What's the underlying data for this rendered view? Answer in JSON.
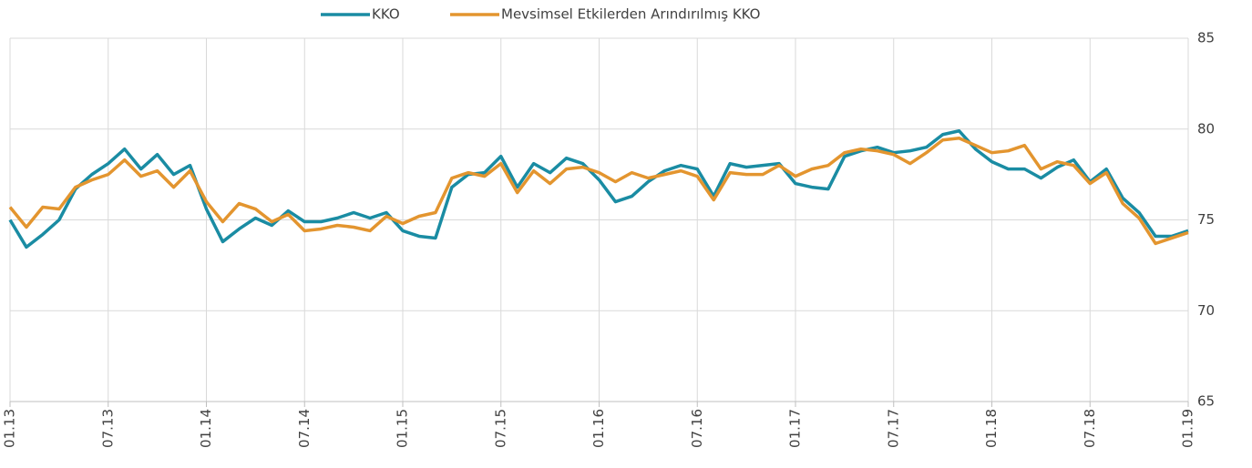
{
  "chart_data": {
    "type": "line",
    "categories": [
      "01.13",
      null,
      null,
      null,
      null,
      null,
      "07.13",
      null,
      null,
      null,
      null,
      null,
      "01.14",
      null,
      null,
      null,
      null,
      null,
      "07.14",
      null,
      null,
      null,
      null,
      null,
      "01.15",
      null,
      null,
      null,
      null,
      null,
      "07.15",
      null,
      null,
      null,
      null,
      null,
      "01.16",
      null,
      null,
      null,
      null,
      null,
      "07.16",
      null,
      null,
      null,
      null,
      null,
      "01.17",
      null,
      null,
      null,
      null,
      null,
      "07.17",
      null,
      null,
      null,
      null,
      null,
      "01.18",
      null,
      null,
      null,
      null,
      null,
      "07.18",
      null,
      null,
      null,
      null,
      null,
      "01.19"
    ],
    "series": [
      {
        "name": "KKO",
        "color": "#1a8ca3",
        "values": [
          75.0,
          73.5,
          74.2,
          75.0,
          76.7,
          77.5,
          78.1,
          78.9,
          77.8,
          78.6,
          77.5,
          78.0,
          75.6,
          73.8,
          74.5,
          75.1,
          74.7,
          75.5,
          74.9,
          74.9,
          75.1,
          75.4,
          75.1,
          75.4,
          74.4,
          74.1,
          74.0,
          76.8,
          77.5,
          77.6,
          78.5,
          76.8,
          78.1,
          77.6,
          78.4,
          78.1,
          77.2,
          76.0,
          76.3,
          77.1,
          77.7,
          78.0,
          77.8,
          76.3,
          78.1,
          77.9,
          78.0,
          78.1,
          77.0,
          76.8,
          76.7,
          78.5,
          78.8,
          79.0,
          78.7,
          78.8,
          79.0,
          79.7,
          79.9,
          78.9,
          78.2,
          77.8,
          77.8,
          77.3,
          77.9,
          78.3,
          77.1,
          77.8,
          76.2,
          75.4,
          74.1,
          74.1,
          74.4
        ]
      },
      {
        "name": "Mevsimsel Etkilerden Arındırılmış KKO",
        "color": "#e3952f",
        "values": [
          75.7,
          74.6,
          75.7,
          75.6,
          76.8,
          77.2,
          77.5,
          78.3,
          77.4,
          77.7,
          76.8,
          77.7,
          76.0,
          74.9,
          75.9,
          75.6,
          74.9,
          75.3,
          74.4,
          74.5,
          74.7,
          74.6,
          74.4,
          75.2,
          74.8,
          75.2,
          75.4,
          77.3,
          77.6,
          77.4,
          78.1,
          76.5,
          77.7,
          77.0,
          77.8,
          77.9,
          77.6,
          77.1,
          77.6,
          77.3,
          77.5,
          77.7,
          77.4,
          76.1,
          77.6,
          77.5,
          77.5,
          78.0,
          77.4,
          77.8,
          78.0,
          78.7,
          78.9,
          78.8,
          78.6,
          78.1,
          78.7,
          79.4,
          79.5,
          79.1,
          78.7,
          78.8,
          79.1,
          77.8,
          78.2,
          78.0,
          77.0,
          77.6,
          75.9,
          75.1,
          73.7,
          74.0,
          74.3
        ]
      }
    ],
    "ylim": [
      65,
      85
    ],
    "yticks": [
      65,
      70,
      75,
      80,
      85
    ],
    "grid": true,
    "y_axis_side": "right",
    "legend": "top"
  }
}
